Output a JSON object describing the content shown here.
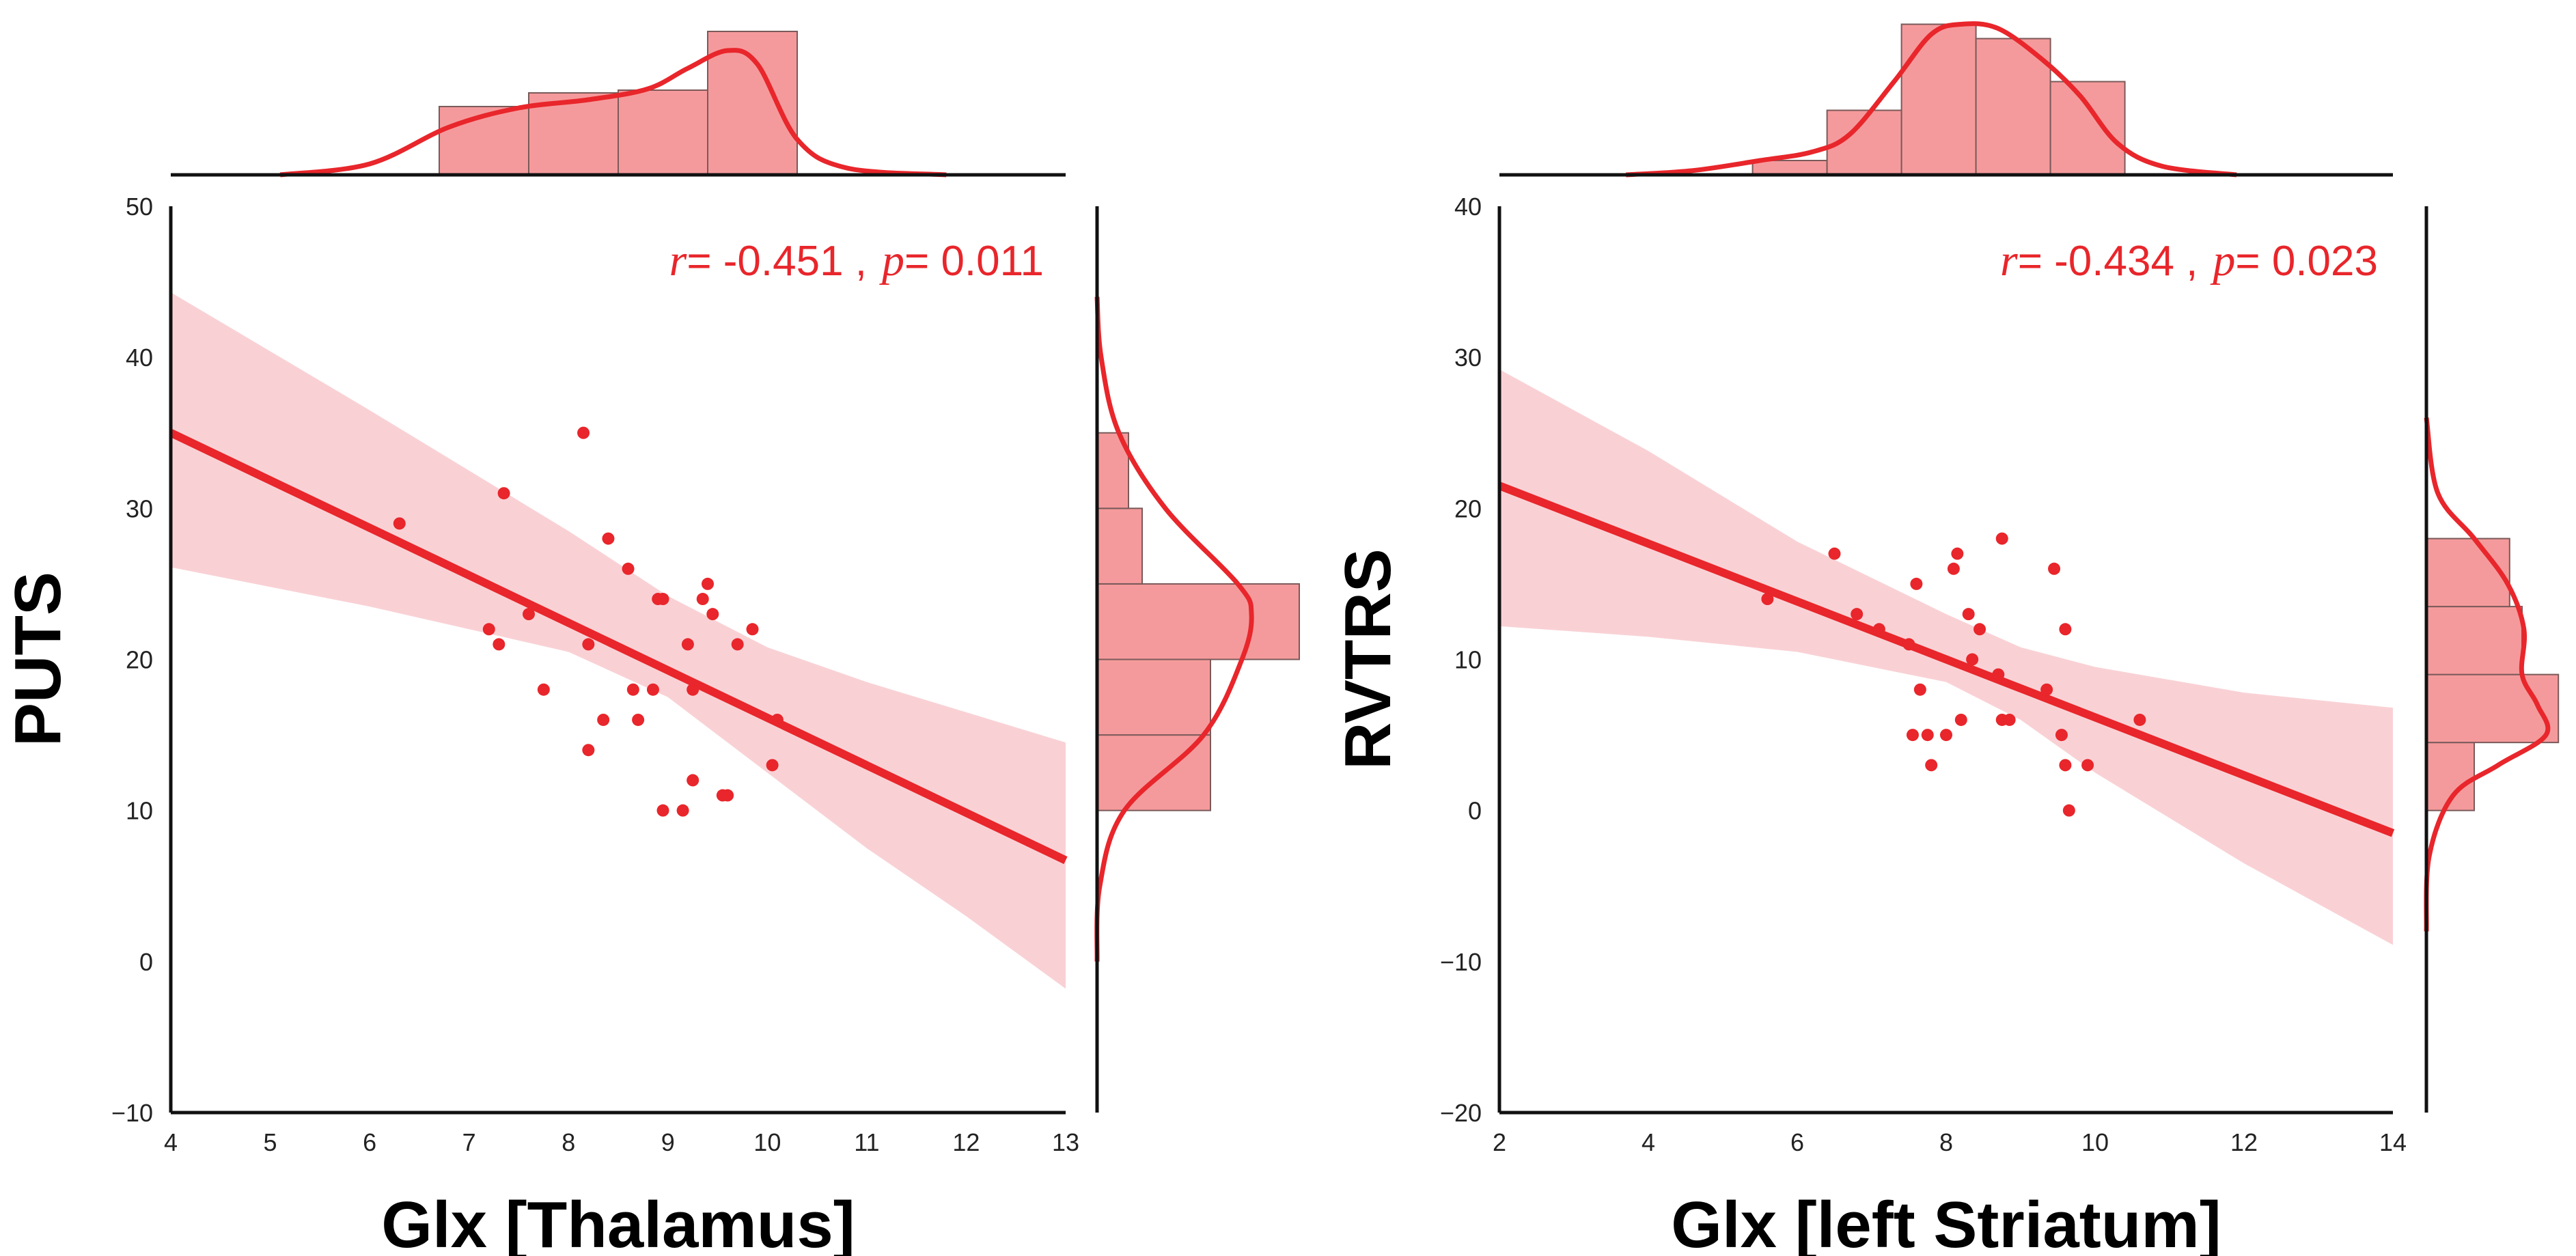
{
  "chart_data": [
    {
      "type": "scatter",
      "name": "thalamus",
      "xlabel": "Glx [Thalamus]",
      "ylabel": "PUTS",
      "xlim": [
        4,
        13
      ],
      "ylim": [
        -10,
        50
      ],
      "xticks": [
        "4",
        "5",
        "6",
        "7",
        "8",
        "9",
        "10",
        "11",
        "12",
        "13"
      ],
      "yticks": [
        "−10",
        "0",
        "10",
        "20",
        "30",
        "40",
        "50"
      ],
      "stat": {
        "r_sym": "r",
        "r_val": "= -0.451 ,",
        "p_sym": "p",
        "p_val": "= 0.011"
      },
      "points": [
        [
          6.3,
          29
        ],
        [
          7.2,
          22
        ],
        [
          7.3,
          21
        ],
        [
          7.35,
          31
        ],
        [
          7.6,
          23
        ],
        [
          7.75,
          18
        ],
        [
          8.15,
          35
        ],
        [
          8.2,
          14
        ],
        [
          8.2,
          21
        ],
        [
          8.35,
          16
        ],
        [
          8.4,
          28
        ],
        [
          8.6,
          26
        ],
        [
          8.65,
          18
        ],
        [
          8.7,
          16
        ],
        [
          8.85,
          18
        ],
        [
          8.9,
          24
        ],
        [
          8.95,
          24
        ],
        [
          8.95,
          10
        ],
        [
          9.15,
          10
        ],
        [
          9.2,
          21
        ],
        [
          9.25,
          18
        ],
        [
          9.25,
          12
        ],
        [
          9.35,
          24
        ],
        [
          9.4,
          25
        ],
        [
          9.45,
          23
        ],
        [
          9.55,
          11
        ],
        [
          9.6,
          11
        ],
        [
          9.7,
          21
        ],
        [
          9.85,
          22
        ],
        [
          10.05,
          13
        ],
        [
          10.1,
          16
        ]
      ],
      "fit": {
        "x0": 4,
        "y0": 35,
        "x1": 13,
        "y1": 6.7
      },
      "ci_upper": [
        [
          4,
          44.3
        ],
        [
          6,
          36.5
        ],
        [
          8,
          28.5
        ],
        [
          9,
          24.2
        ],
        [
          10,
          20.8
        ],
        [
          11,
          18.5
        ],
        [
          12,
          16.5
        ],
        [
          13,
          14.5
        ]
      ],
      "ci_lower": [
        [
          4,
          26.1
        ],
        [
          6,
          23.5
        ],
        [
          8,
          20.5
        ],
        [
          9,
          17.5
        ],
        [
          10,
          12.5
        ],
        [
          11,
          7.5
        ],
        [
          12,
          3.0
        ],
        [
          13,
          -1.8
        ]
      ],
      "top_hist": {
        "edges": [
          6.7,
          7.6,
          8.5,
          9.4,
          10.3
        ],
        "counts": [
          5,
          6,
          6.2,
          10.5
        ]
      },
      "top_kde": [
        [
          5.1,
          0.0
        ],
        [
          6.0,
          0.8
        ],
        [
          6.8,
          3.5
        ],
        [
          7.5,
          4.9
        ],
        [
          8.2,
          5.5
        ],
        [
          8.8,
          6.3
        ],
        [
          9.2,
          7.8
        ],
        [
          9.6,
          9.1
        ],
        [
          9.9,
          8.1
        ],
        [
          10.3,
          2.6
        ],
        [
          10.8,
          0.5
        ],
        [
          11.8,
          0.0
        ]
      ],
      "side_hist": {
        "edges": [
          10,
          15,
          20,
          25,
          30,
          35
        ],
        "counts": [
          8.3,
          8.3,
          14.8,
          3.3,
          2.3
        ]
      },
      "side_kde": [
        [
          0,
          0.0
        ],
        [
          5,
          0.2
        ],
        [
          10,
          2.0
        ],
        [
          15,
          7.8
        ],
        [
          20,
          10.6
        ],
        [
          23,
          11.3
        ],
        [
          25,
          10.3
        ],
        [
          30,
          5.0
        ],
        [
          35,
          1.6
        ],
        [
          40,
          0.3
        ],
        [
          44,
          0.0
        ]
      ],
      "color": "#e8262b",
      "band_color": "#f9d1d5",
      "hist_color": "#f59a9c",
      "hist_edge": "#7a5a5a"
    },
    {
      "type": "scatter",
      "name": "striatum",
      "xlabel": "Glx [left Striatum]",
      "ylabel": "RVTRS",
      "xlim": [
        2,
        14
      ],
      "ylim": [
        -20,
        40
      ],
      "xticks": [
        "2",
        "4",
        "6",
        "8",
        "10",
        "12",
        "14"
      ],
      "yticks": [
        "−20",
        "−10",
        "0",
        "10",
        "20",
        "30",
        "40"
      ],
      "stat": {
        "r_sym": "r",
        "r_val": "= -0.434 ,",
        "p_sym": "p",
        "p_val": "= 0.023"
      },
      "points": [
        [
          5.6,
          14
        ],
        [
          6.5,
          17
        ],
        [
          6.8,
          13
        ],
        [
          7.1,
          12
        ],
        [
          7.5,
          11
        ],
        [
          7.55,
          5
        ],
        [
          7.6,
          15
        ],
        [
          7.65,
          8
        ],
        [
          7.75,
          5
        ],
        [
          7.8,
          3
        ],
        [
          8.0,
          5
        ],
        [
          8.1,
          16
        ],
        [
          8.15,
          17
        ],
        [
          8.2,
          6
        ],
        [
          8.3,
          13
        ],
        [
          8.35,
          10
        ],
        [
          8.45,
          12
        ],
        [
          8.7,
          9
        ],
        [
          8.75,
          18
        ],
        [
          8.75,
          6
        ],
        [
          8.85,
          6
        ],
        [
          9.35,
          8
        ],
        [
          9.45,
          16
        ],
        [
          9.55,
          5
        ],
        [
          9.6,
          3
        ],
        [
          9.6,
          12
        ],
        [
          9.65,
          0
        ],
        [
          9.9,
          3
        ],
        [
          10.6,
          6
        ]
      ],
      "fit": {
        "x0": 2,
        "y0": 21.5,
        "x1": 14,
        "y1": -1.5
      },
      "ci_upper": [
        [
          2,
          29.2
        ],
        [
          4,
          23.8
        ],
        [
          6,
          17.8
        ],
        [
          8,
          13.0
        ],
        [
          9,
          10.8
        ],
        [
          10,
          9.5
        ],
        [
          12,
          7.8
        ],
        [
          14,
          6.8
        ]
      ],
      "ci_lower": [
        [
          2,
          12.2
        ],
        [
          4,
          11.5
        ],
        [
          6,
          10.5
        ],
        [
          8,
          8.5
        ],
        [
          9,
          6.0
        ],
        [
          10,
          2.5
        ],
        [
          12,
          -3.5
        ],
        [
          14,
          -8.9
        ]
      ],
      "top_hist": {
        "edges": [
          5.4,
          6.4,
          7.4,
          8.4,
          9.4,
          10.4
        ],
        "counts": [
          1,
          4.5,
          10.5,
          9.5,
          6.5
        ]
      },
      "top_kde": [
        [
          3.7,
          0.0
        ],
        [
          4.6,
          0.3
        ],
        [
          5.5,
          1.0
        ],
        [
          6.2,
          1.6
        ],
        [
          6.7,
          2.8
        ],
        [
          7.3,
          6.5
        ],
        [
          7.8,
          9.8
        ],
        [
          8.2,
          10.5
        ],
        [
          8.7,
          10.2
        ],
        [
          9.3,
          8.0
        ],
        [
          9.8,
          5.5
        ],
        [
          10.3,
          2.2
        ],
        [
          10.9,
          0.6
        ],
        [
          11.9,
          0.0
        ]
      ],
      "side_hist": {
        "edges": [
          0,
          4.5,
          9,
          13.5,
          18
        ],
        "counts": [
          5.0,
          13.8,
          10.0,
          8.7
        ]
      },
      "side_kde": [
        [
          -8,
          0.0
        ],
        [
          -3,
          0.3
        ],
        [
          1,
          2.8
        ],
        [
          3,
          7.5
        ],
        [
          5,
          12.5
        ],
        [
          7,
          11.6
        ],
        [
          9,
          10.0
        ],
        [
          12,
          10.2
        ],
        [
          15,
          8.5
        ],
        [
          18,
          5.0
        ],
        [
          21,
          1.2
        ],
        [
          26,
          0.0
        ]
      ],
      "color": "#e8262b",
      "band_color": "#f9d1d5",
      "hist_color": "#f59a9c",
      "hist_edge": "#7a5a5a"
    }
  ]
}
